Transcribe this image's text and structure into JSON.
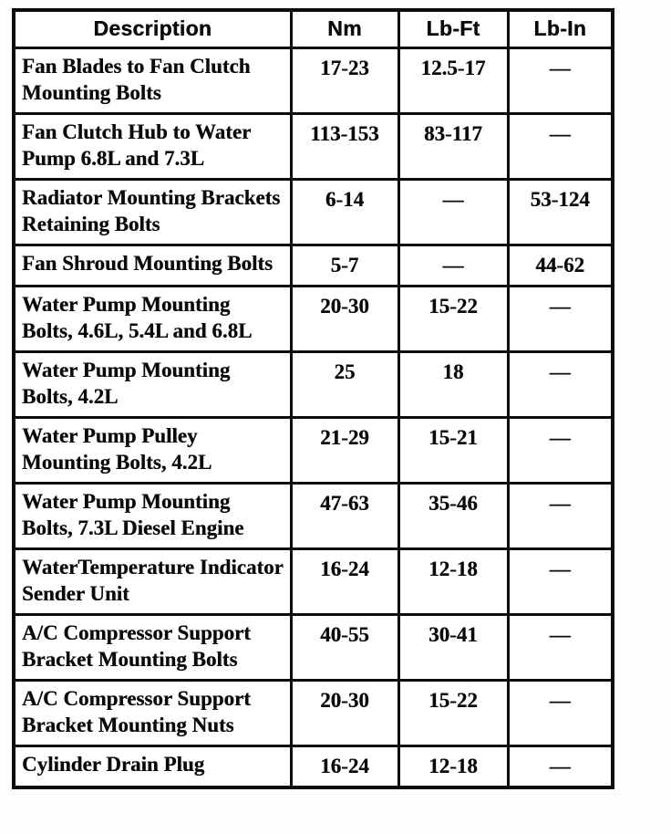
{
  "table": {
    "headers": [
      "Description",
      "Nm",
      "Lb-Ft",
      "Lb-In"
    ],
    "rows": [
      {
        "description": "Fan Blades to Fan Clutch Mounting Bolts",
        "nm": "17-23",
        "lb_ft": "12.5-17",
        "lb_in": "—"
      },
      {
        "description": "Fan Clutch Hub to Water Pump 6.8L and 7.3L",
        "nm": "113-153",
        "lb_ft": "83-117",
        "lb_in": "—"
      },
      {
        "description": "Radiator Mounting Brackets Retaining Bolts",
        "nm": "6-14",
        "lb_ft": "—",
        "lb_in": "53-124"
      },
      {
        "description": "Fan Shroud Mounting Bolts",
        "nm": "5-7",
        "lb_ft": "—",
        "lb_in": "44-62"
      },
      {
        "description": "Water Pump Mounting Bolts, 4.6L, 5.4L and 6.8L",
        "nm": "20-30",
        "lb_ft": "15-22",
        "lb_in": "—"
      },
      {
        "description": "Water Pump Mounting Bolts, 4.2L",
        "nm": "25",
        "lb_ft": "18",
        "lb_in": "—"
      },
      {
        "description": "Water Pump Pulley Mounting Bolts, 4.2L",
        "nm": "21-29",
        "lb_ft": "15-21",
        "lb_in": "—"
      },
      {
        "description": "Water Pump Mounting Bolts, 7.3L Diesel Engine",
        "nm": "47-63",
        "lb_ft": "35-46",
        "lb_in": "—"
      },
      {
        "description": "WaterTemperature Indicator Sender Unit",
        "nm": "16-24",
        "lb_ft": "12-18",
        "lb_in": "—"
      },
      {
        "description": "A/C Compressor Support Bracket Mounting Bolts",
        "nm": "40-55",
        "lb_ft": "30-41",
        "lb_in": "—"
      },
      {
        "description": "A/C Compressor Support Bracket Mounting Nuts",
        "nm": "20-30",
        "lb_ft": "15-22",
        "lb_in": "—"
      },
      {
        "description": "Cylinder Drain Plug",
        "nm": "16-24",
        "lb_ft": "12-18",
        "lb_in": "—"
      }
    ]
  }
}
